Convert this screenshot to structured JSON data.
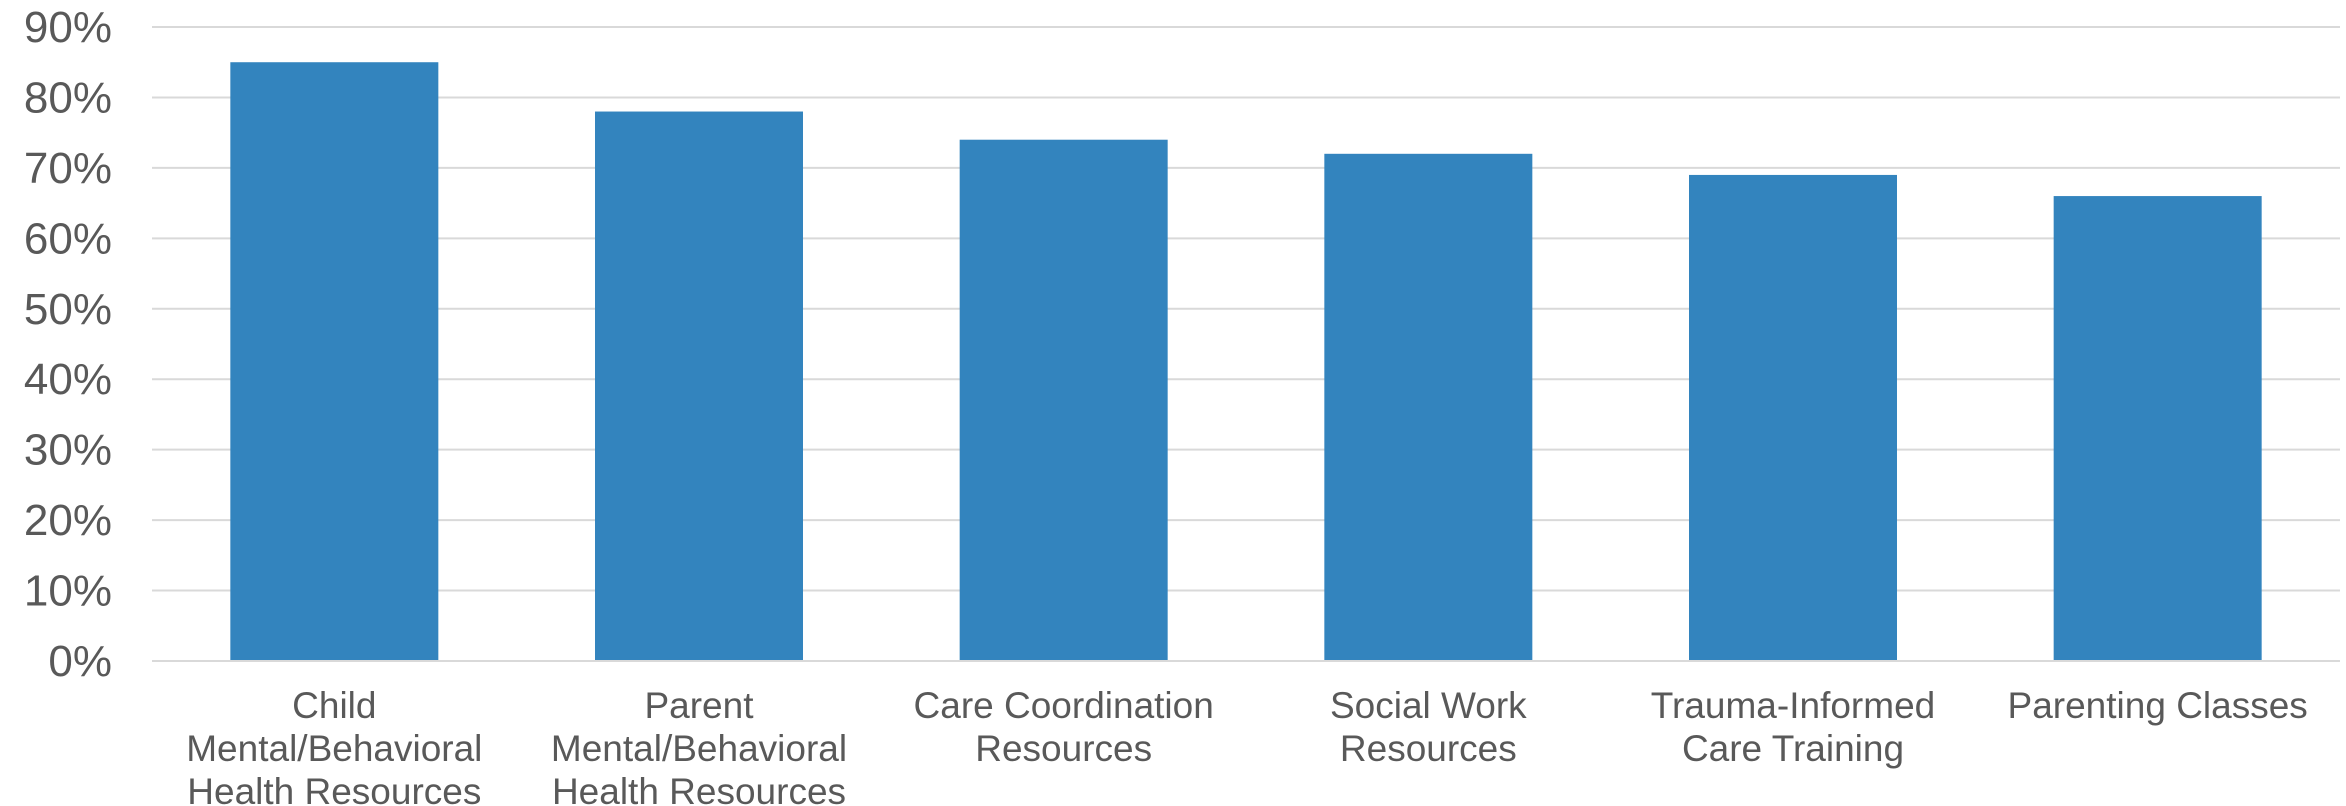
{
  "chart_data": {
    "type": "bar",
    "categories": [
      [
        "Child",
        "Mental/Behavioral",
        "Health Resources"
      ],
      [
        "Parent",
        "Mental/Behavioral",
        "Health Resources"
      ],
      [
        "Care Coordination",
        "Resources"
      ],
      [
        "Social Work",
        "Resources"
      ],
      [
        "Trauma-Informed",
        "Care Training"
      ],
      [
        "Parenting Classes"
      ]
    ],
    "values": [
      85,
      78,
      74,
      72,
      69,
      66
    ],
    "y_ticks": [
      "0%",
      "10%",
      "20%",
      "30%",
      "40%",
      "50%",
      "60%",
      "70%",
      "80%",
      "90%"
    ],
    "ylim": [
      0,
      90
    ],
    "grid": true,
    "legend": "none",
    "colors": {
      "bar": "#3384BE",
      "grid": "#D9D9D9",
      "axis": "#D9D9D9",
      "text": "#595959"
    }
  }
}
